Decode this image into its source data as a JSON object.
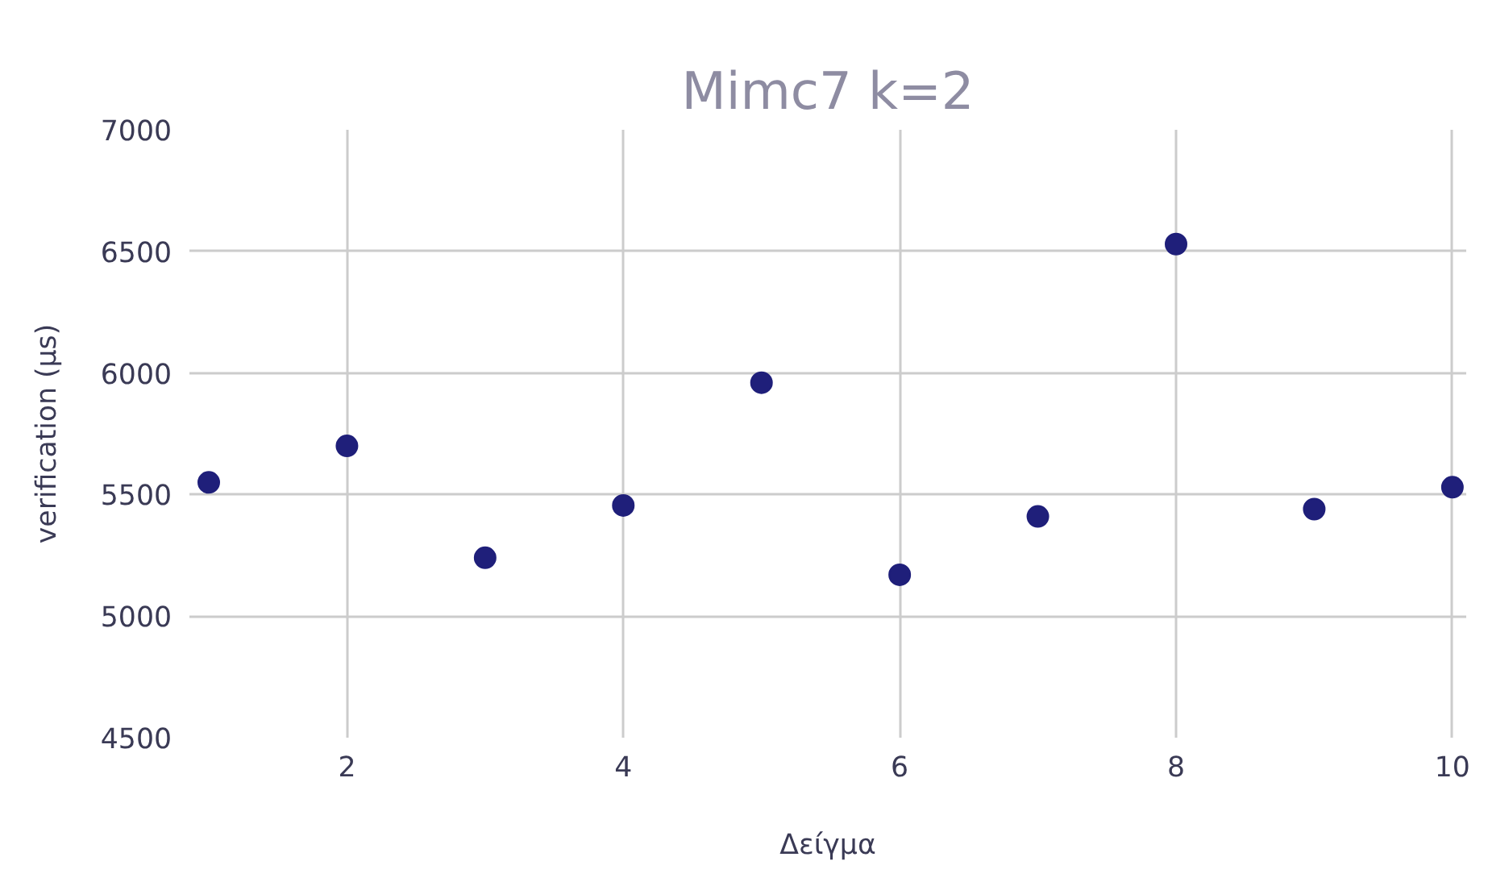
{
  "chart_data": {
    "type": "scatter",
    "title": "Mimc7 k=2",
    "xlabel": "Δείγμα",
    "ylabel": "verification (μs)",
    "x": [
      1,
      2,
      3,
      4,
      5,
      6,
      7,
      8,
      9,
      10
    ],
    "series": [
      {
        "color": "#1f1f7a",
        "values": [
          5550,
          5700,
          5240,
          5455,
          5960,
          5170,
          5410,
          6530,
          5440,
          5530
        ]
      }
    ],
    "xlim": [
      0.86,
      10.1
    ],
    "ylim": [
      4500,
      7000
    ],
    "xticks": [
      2,
      4,
      6,
      8,
      10
    ],
    "yticks": [
      4500,
      5000,
      5500,
      6000,
      6500,
      7000
    ],
    "grid": true,
    "marker": "circle"
  }
}
